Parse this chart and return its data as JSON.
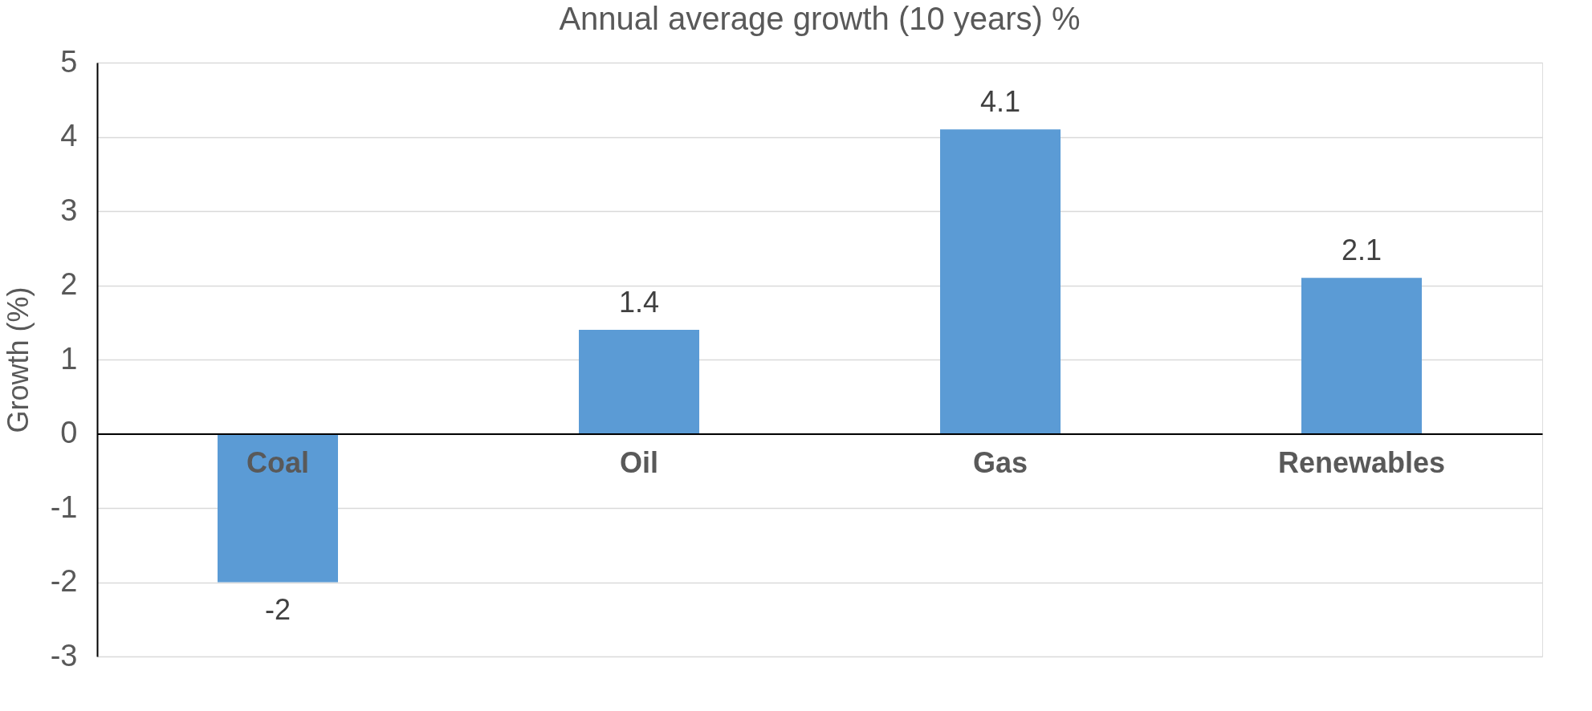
{
  "chart_data": {
    "type": "bar",
    "title": "Annual average growth (10 years) %",
    "ylabel": "Growth (%)",
    "categories": [
      "Coal",
      "Oil",
      "Gas",
      "Renewables"
    ],
    "values": [
      -2,
      1.4,
      4.1,
      2.1
    ],
    "color": "#5b9bd5",
    "ylim": [
      -3,
      5
    ],
    "yticks": [
      -3,
      -2,
      -1,
      0,
      1,
      2,
      3,
      4,
      5
    ],
    "grid": "y",
    "data_labels": true
  }
}
